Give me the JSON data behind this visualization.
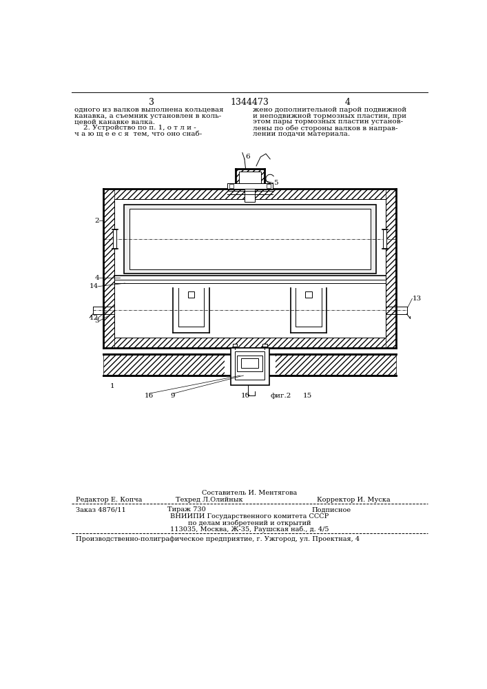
{
  "bg_color": "#ffffff",
  "page_width": 7.07,
  "page_height": 10.0,
  "top_text_left": [
    "одного из валков выполнена кольцевая",
    "канавка, а съемник установлен в коль-",
    "цевой канавке валка.",
    "    2. Устройство по п. 1, о т л и -",
    "ч а ю щ е е с я  тем, что оно снаб-"
  ],
  "top_text_right": [
    "жено дополнительной парой подвижной",
    "и неподвижной тормозных пластин, при",
    "этом пары тормозных пластин установ-",
    "лены по обе стороны валков в направ-",
    "лении подачи материала."
  ],
  "page_num_left": "3",
  "page_num_center": "1344473",
  "page_num_right": "4",
  "fig_label": "фиг.2",
  "font_size_body": 7.5,
  "font_size_label": 7.5,
  "font_size_page_num": 9.0
}
